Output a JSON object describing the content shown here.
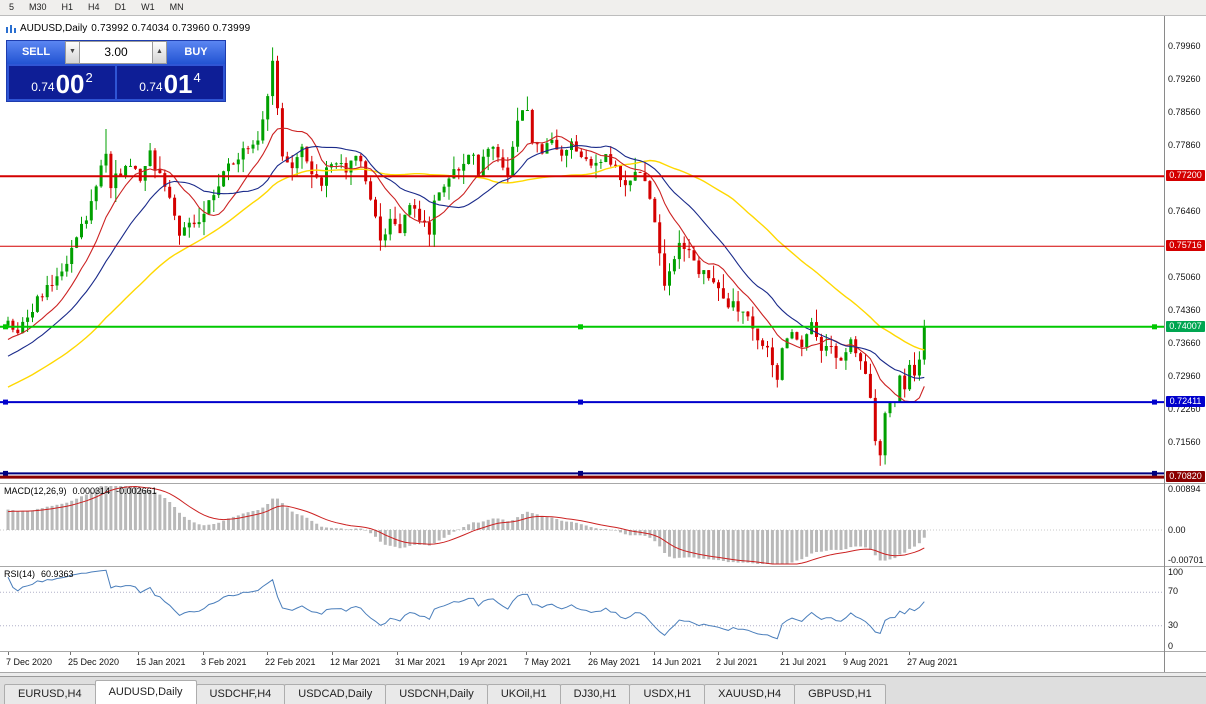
{
  "toolbar": {
    "timeframes": [
      "5",
      "M30",
      "H1",
      "H4",
      "D1",
      "W1",
      "MN"
    ]
  },
  "chart_header": {
    "title": "AUDUSD,Daily",
    "ohlc": "0.73992 0.74034 0.73960 0.73999"
  },
  "trade_panel": {
    "sell_label": "SELL",
    "buy_label": "BUY",
    "volume": "3.00",
    "sell_price_main": "0.74",
    "sell_price_big": "00",
    "sell_price_sup": "2",
    "buy_price_main": "0.74",
    "buy_price_big": "01",
    "buy_price_sup": "4"
  },
  "price_axis": {
    "labels": [
      [
        "0.79960",
        46
      ],
      [
        "0.79260",
        79
      ],
      [
        "0.78560",
        112
      ],
      [
        "0.77860",
        145
      ],
      [
        "0.76460",
        211
      ],
      [
        "0.75060",
        277
      ],
      [
        "0.74360",
        310
      ],
      [
        "0.73660",
        343
      ],
      [
        "0.72960",
        376
      ],
      [
        "0.72260",
        409
      ],
      [
        "0.71560",
        442
      ]
    ],
    "badges": [
      [
        "0.77200",
        176,
        "#d40000"
      ],
      [
        "0.75716",
        246,
        "#d40000"
      ],
      [
        "0.74007",
        327,
        "#00a651"
      ],
      [
        "0.72411",
        402,
        "#0000cc"
      ],
      [
        "0.70820",
        477,
        "#8b0000"
      ]
    ]
  },
  "macd": {
    "name": "MACD(12,26,9)",
    "value_main": "0.000314",
    "value_signal": "-0.002661",
    "axis": [
      [
        "0.00894",
        489
      ],
      [
        "0.00",
        530
      ],
      [
        "-0.00701",
        560
      ]
    ]
  },
  "rsi": {
    "name": "RSI(14)",
    "value": "60.9363",
    "axis": [
      [
        "100",
        572
      ],
      [
        "70",
        591
      ],
      [
        "30",
        625
      ],
      [
        "0",
        646
      ]
    ]
  },
  "date_axis": [
    [
      "7 Dec 2020",
      8
    ],
    [
      "25 Dec 2020",
      70
    ],
    [
      "15 Jan 2021",
      138
    ],
    [
      "3 Feb 2021",
      203
    ],
    [
      "22 Feb 2021",
      267
    ],
    [
      "12 Mar 2021",
      332
    ],
    [
      "31 Mar 2021",
      397
    ],
    [
      "19 Apr 2021",
      461
    ],
    [
      "7 May 2021",
      526
    ],
    [
      "26 May 2021",
      590
    ],
    [
      "14 Jun 2021",
      654
    ],
    [
      "2 Jul 2021",
      718
    ],
    [
      "21 Jul 2021",
      782
    ],
    [
      "9 Aug 2021",
      845
    ],
    [
      "27 Aug 2021",
      909
    ]
  ],
  "tabs": [
    {
      "label": "EURUSD,H4",
      "active": false
    },
    {
      "label": "AUDUSD,Daily",
      "active": true
    },
    {
      "label": "USDCHF,H4",
      "active": false
    },
    {
      "label": "USDCAD,Daily",
      "active": false
    },
    {
      "label": "USDCNH,Daily",
      "active": false
    },
    {
      "label": "UKOil,H1",
      "active": false
    },
    {
      "label": "DJ30,H1",
      "active": false
    },
    {
      "label": "USDX,H1",
      "active": false
    },
    {
      "label": "XAUUSD,H4",
      "active": false
    },
    {
      "label": "GBPUSD,H1",
      "active": false
    }
  ],
  "chart_data": {
    "type": "candlestick",
    "symbol": "AUDUSD",
    "timeframe": "Daily",
    "current_ohlc": {
      "open": 0.73992,
      "high": 0.74034,
      "low": 0.7396,
      "close": 0.73999
    },
    "price_axis_visible_range": [
      0.7082,
      0.7996
    ],
    "candles_visible": 188,
    "last_close": 0.73999,
    "close_waypoints": [
      [
        -60,
        0.712
      ],
      [
        -45,
        0.716
      ],
      [
        -30,
        0.723
      ],
      [
        -15,
        0.73
      ],
      [
        -5,
        0.737
      ],
      [
        0,
        0.742
      ],
      [
        2,
        0.739
      ],
      [
        6,
        0.7455
      ],
      [
        10,
        0.751
      ],
      [
        13,
        0.756
      ],
      [
        16,
        0.7635
      ],
      [
        18,
        0.77
      ],
      [
        20,
        0.7775
      ],
      [
        21,
        0.7705
      ],
      [
        24,
        0.7745
      ],
      [
        27,
        0.772
      ],
      [
        29,
        0.7765
      ],
      [
        32,
        0.77
      ],
      [
        35,
        0.76
      ],
      [
        37,
        0.7625
      ],
      [
        40,
        0.763
      ],
      [
        42,
        0.769
      ],
      [
        45,
        0.774
      ],
      [
        48,
        0.777
      ],
      [
        51,
        0.7805
      ],
      [
        53,
        0.789
      ],
      [
        54,
        0.7955
      ],
      [
        55,
        0.7865
      ],
      [
        56,
        0.777
      ],
      [
        58,
        0.7745
      ],
      [
        60,
        0.7785
      ],
      [
        62,
        0.772
      ],
      [
        64,
        0.7705
      ],
      [
        66,
        0.7755
      ],
      [
        69,
        0.773
      ],
      [
        71,
        0.777
      ],
      [
        73,
        0.7715
      ],
      [
        75,
        0.7635
      ],
      [
        76,
        0.759
      ],
      [
        78,
        0.762
      ],
      [
        80,
        0.761
      ],
      [
        82,
        0.7655
      ],
      [
        84,
        0.7625
      ],
      [
        86,
        0.7605
      ],
      [
        87,
        0.766
      ],
      [
        89,
        0.77
      ],
      [
        92,
        0.774
      ],
      [
        95,
        0.7765
      ],
      [
        96,
        0.772
      ],
      [
        98,
        0.7785
      ],
      [
        100,
        0.777
      ],
      [
        102,
        0.7715
      ],
      [
        104,
        0.7845
      ],
      [
        106,
        0.787
      ],
      [
        107,
        0.7795
      ],
      [
        109,
        0.7775
      ],
      [
        111,
        0.7795
      ],
      [
        113,
        0.776
      ],
      [
        115,
        0.7785
      ],
      [
        119,
        0.7745
      ],
      [
        122,
        0.7765
      ],
      [
        124,
        0.774
      ],
      [
        126,
        0.7705
      ],
      [
        129,
        0.7735
      ],
      [
        131,
        0.768
      ],
      [
        133,
        0.756
      ],
      [
        134,
        0.748
      ],
      [
        136,
        0.7535
      ],
      [
        137,
        0.758
      ],
      [
        139,
        0.7565
      ],
      [
        141,
        0.752
      ],
      [
        145,
        0.749
      ],
      [
        147,
        0.745
      ],
      [
        150,
        0.744
      ],
      [
        152,
        0.74
      ],
      [
        156,
        0.733
      ],
      [
        157,
        0.729
      ],
      [
        158,
        0.736
      ],
      [
        160,
        0.739
      ],
      [
        162,
        0.735
      ],
      [
        164,
        0.74
      ],
      [
        166,
        0.7345
      ],
      [
        168,
        0.7365
      ],
      [
        169,
        0.733
      ],
      [
        171,
        0.734
      ],
      [
        172,
        0.7372
      ],
      [
        174,
        0.733
      ],
      [
        176,
        0.725
      ],
      [
        177,
        0.715
      ],
      [
        178,
        0.7118
      ],
      [
        179,
        0.722
      ],
      [
        180,
        0.7245
      ],
      [
        181,
        0.724
      ],
      [
        182,
        0.729
      ],
      [
        183,
        0.726
      ],
      [
        184,
        0.731
      ],
      [
        185,
        0.729
      ],
      [
        186,
        0.733
      ],
      [
        187,
        0.74
      ]
    ],
    "extremes": [
      {
        "i": 20,
        "high": 0.782
      },
      {
        "i": 54,
        "high": 0.7993
      },
      {
        "i": 76,
        "low": 0.7562
      },
      {
        "i": 157,
        "low": 0.7272
      },
      {
        "i": 178,
        "low": 0.7106
      }
    ],
    "moving_averages": [
      {
        "period": 45,
        "color": "#ffd800"
      },
      {
        "period": 10,
        "color": "#cc2222"
      },
      {
        "period": 20,
        "color": "#1a2a8a"
      }
    ],
    "levels": [
      {
        "price": 0.772,
        "color": "#d40000",
        "width": 2,
        "handles": false
      },
      {
        "price": 0.75716,
        "color": "#d40000",
        "width": 1,
        "handles": false
      },
      {
        "price": 0.74007,
        "color": "#00c800",
        "width": 2,
        "handles": true
      },
      {
        "price": 0.72411,
        "color": "#0000cc",
        "width": 2,
        "handles": true
      },
      {
        "price": 0.709,
        "color": "#000080",
        "width": 2,
        "handles": true
      },
      {
        "price": 0.7082,
        "color": "#8b0000",
        "width": 3,
        "handles": false
      }
    ],
    "indicators": {
      "macd": {
        "fast": 12,
        "slow": 26,
        "signal": 9,
        "value_main": 0.000314,
        "value_signal": -0.002661,
        "axis_max": 0.00894,
        "axis_min": -0.00701
      },
      "rsi": {
        "period": 14,
        "last": 60.9363,
        "levels": [
          70,
          30
        ]
      }
    },
    "candle_colors": {
      "up": "#00a000",
      "down": "#d40000"
    }
  }
}
